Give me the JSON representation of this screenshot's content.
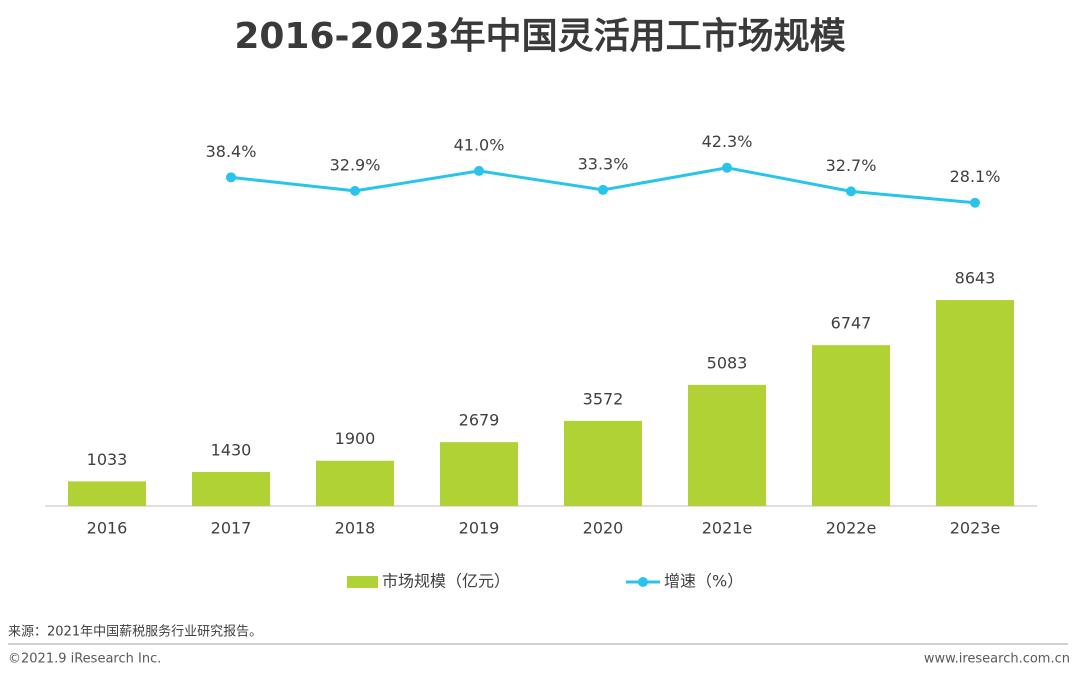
{
  "chart_data": {
    "type": "bar",
    "title": "2016-2023年中国灵活用工市场规模",
    "categories": [
      "2016",
      "2017",
      "2018",
      "2019",
      "2020",
      "2021e",
      "2022e",
      "2023e"
    ],
    "series": [
      {
        "name": "市场规模（亿元）",
        "type": "bar",
        "color": "#b0d235",
        "values": [
          1033,
          1430,
          1900,
          2679,
          3572,
          5083,
          6747,
          8643
        ]
      },
      {
        "name": "增速（%）",
        "type": "line",
        "axis": "y2",
        "color": "#29c4ea",
        "values": [
          null,
          38.4,
          32.9,
          41.0,
          33.3,
          42.3,
          32.7,
          28.1
        ],
        "value_labels": [
          null,
          "38.4%",
          "32.9%",
          "41.0%",
          "33.3%",
          "42.3%",
          "32.7%",
          "28.1%"
        ]
      }
    ]
  },
  "source": "来源：2021年中国薪税服务行业研究报告。",
  "copyright": "©2021.9 iResearch Inc.",
  "website": "www.iresearch.com.cn"
}
